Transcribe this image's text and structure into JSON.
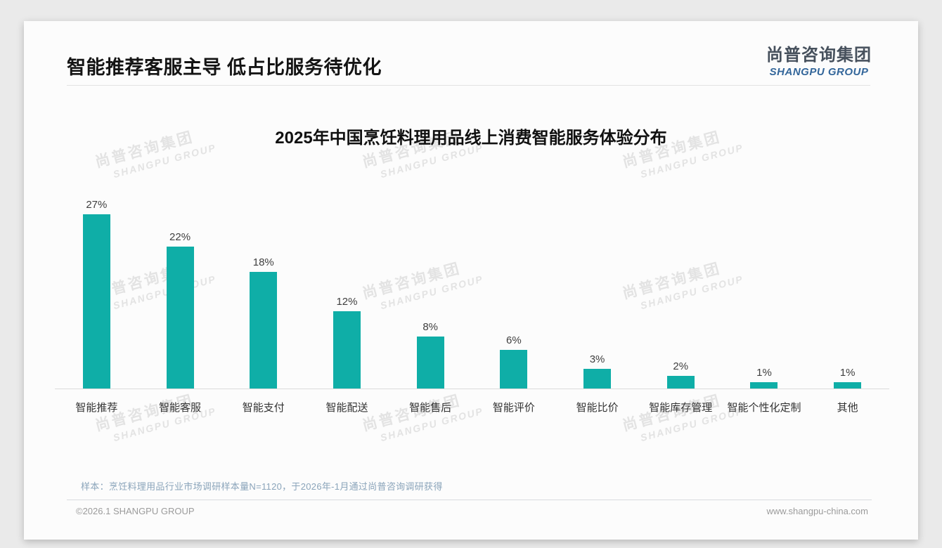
{
  "header": {
    "title": "智能推荐客服主导 低占比服务待优化"
  },
  "logo": {
    "cn": "尚普咨询集团",
    "en": "SHANGPU GROUP"
  },
  "watermark": {
    "cn": "尚普咨询集团",
    "en": "SHANGPU GROUP"
  },
  "chart_data": {
    "type": "bar",
    "title": "2025年中国烹饪料理用品线上消费智能服务体验分布",
    "categories": [
      "智能推荐",
      "智能客服",
      "智能支付",
      "智能配送",
      "智能售后",
      "智能评价",
      "智能比价",
      "智能库存管理",
      "智能个性化定制",
      "其他"
    ],
    "values": [
      27,
      22,
      18,
      12,
      8,
      6,
      3,
      2,
      1,
      1
    ],
    "value_labels": [
      "27%",
      "22%",
      "18%",
      "12%",
      "8%",
      "6%",
      "3%",
      "2%",
      "1%",
      "1%"
    ],
    "unit": "%",
    "bar_color": "#0FAEA7",
    "ylim": [
      0,
      30
    ],
    "grid": false,
    "legend": null,
    "xlabel": "",
    "ylabel": ""
  },
  "footnote": "样本：烹饪料理用品行业市场调研样本量N=1120，于2026年-1月通过尚普咨询调研获得",
  "footer": {
    "left": "©2026.1 SHANGPU GROUP",
    "right": "www.shangpu-china.com"
  }
}
